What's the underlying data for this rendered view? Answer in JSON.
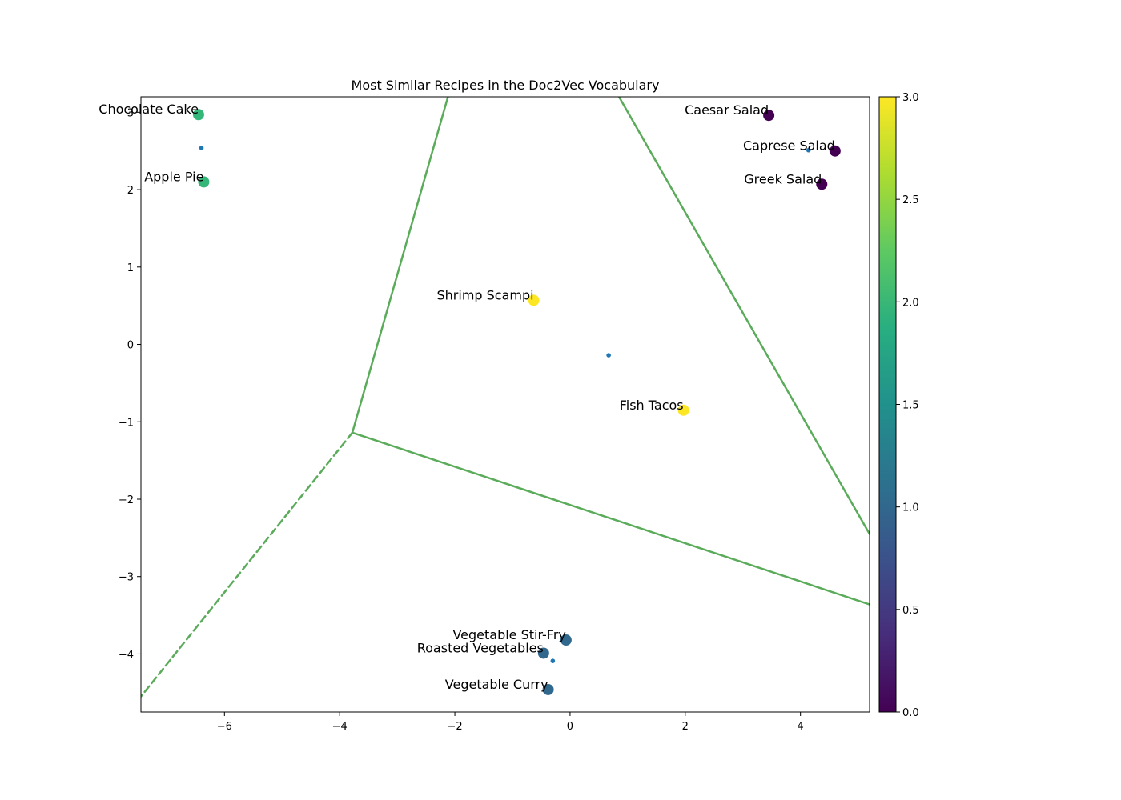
{
  "chart_data": {
    "type": "scatter",
    "title": "Most Similar Recipes in the Doc2Vec Vocabulary",
    "xlabel": "",
    "ylabel": "",
    "xlim": [
      -7.45,
      5.2
    ],
    "ylim": [
      -4.75,
      3.2
    ],
    "x_ticks": [
      -6,
      -4,
      -2,
      0,
      2,
      4
    ],
    "y_ticks": [
      -4,
      -3,
      -2,
      -1,
      0,
      1,
      2,
      3
    ],
    "grid": false,
    "points": [
      {
        "label": "Chocolate Cake",
        "x": -6.45,
        "y": 2.97,
        "cluster": 2
      },
      {
        "label": "Apple Pie",
        "x": -6.36,
        "y": 2.1,
        "cluster": 2
      },
      {
        "label": "Caesar Salad",
        "x": 3.45,
        "y": 2.96,
        "cluster": 0
      },
      {
        "label": "Caprese Salad",
        "x": 4.6,
        "y": 2.5,
        "cluster": 0
      },
      {
        "label": "Greek Salad",
        "x": 4.37,
        "y": 2.07,
        "cluster": 0
      },
      {
        "label": "Shrimp Scampi",
        "x": -0.63,
        "y": 0.57,
        "cluster": 3
      },
      {
        "label": "Fish Tacos",
        "x": 1.97,
        "y": -0.85,
        "cluster": 3
      },
      {
        "label": "Vegetable Stir-Fry",
        "x": -0.07,
        "y": -3.82,
        "cluster": 1
      },
      {
        "label": "Roasted Vegetables",
        "x": -0.46,
        "y": -3.99,
        "cluster": 1
      },
      {
        "label": "Vegetable Curry",
        "x": -0.38,
        "y": -4.46,
        "cluster": 1
      }
    ],
    "centroids": [
      {
        "x": -6.4,
        "y": 2.54
      },
      {
        "x": 4.14,
        "y": 2.51
      },
      {
        "x": 0.67,
        "y": -0.14
      },
      {
        "x": -0.3,
        "y": -4.09
      }
    ],
    "voronoi_vertex": {
      "x": -3.78,
      "y": -1.14
    },
    "voronoi_edges": [
      {
        "from": [
          -3.78,
          -1.14
        ],
        "to": [
          -2.12,
          3.2
        ],
        "style": "solid"
      },
      {
        "from": [
          -3.78,
          -1.14
        ],
        "to": [
          5.2,
          -3.36
        ],
        "style": "solid"
      },
      {
        "from": [
          0.85,
          3.2
        ],
        "to": [
          5.2,
          -2.45
        ],
        "style": "solid"
      },
      {
        "from": [
          -3.78,
          -1.14
        ],
        "to": [
          -7.45,
          -4.55
        ],
        "style": "dashed"
      }
    ],
    "colorbar": {
      "min": 0,
      "max": 3,
      "ticks": [
        0.0,
        0.5,
        1.0,
        1.5,
        2.0,
        2.5,
        3.0
      ],
      "tick_labels": [
        "0.0",
        "0.5",
        "1.0",
        "1.5",
        "2.0",
        "2.5",
        "3.0"
      ],
      "colormap": "viridis"
    },
    "colors": {
      "cluster_0": "#440154",
      "cluster_1": "#31688e",
      "cluster_2": "#35b779",
      "cluster_3": "#fde725",
      "centroid": "#1f77b4",
      "voronoi": "#5aab5a"
    }
  }
}
